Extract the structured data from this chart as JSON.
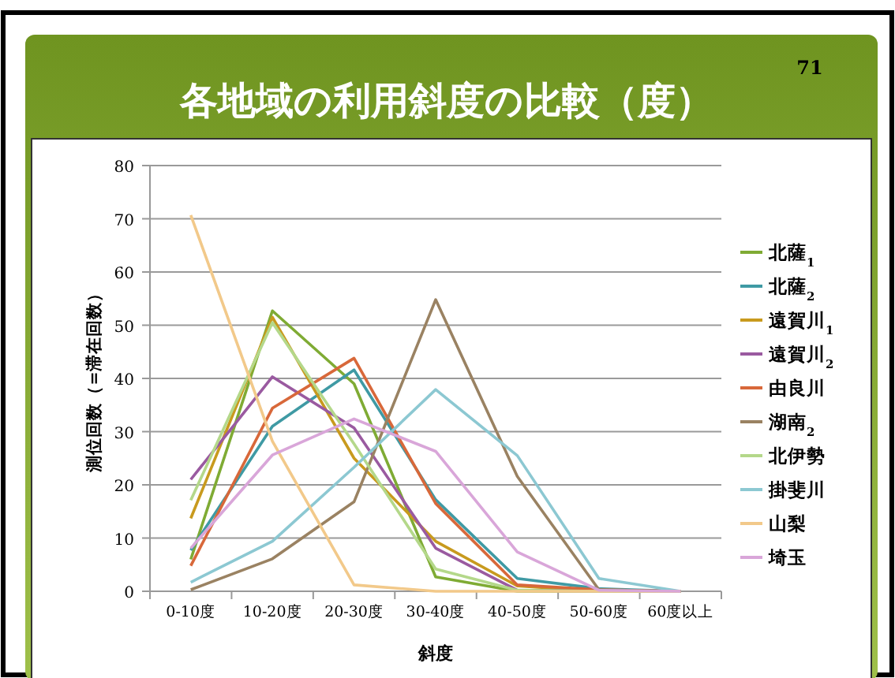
{
  "chart_data": {
    "type": "line",
    "title": "各地域の利用斜度の比較（度）",
    "annotations": [
      "71"
    ],
    "xlabel": "斜度",
    "ylabel": "測位回数（=滞在回数）",
    "categories": [
      "0-10度",
      "10-20度",
      "20-30度",
      "30-40度",
      "40-50度",
      "50-60度",
      "60度以上"
    ],
    "ylim": [
      0,
      80
    ],
    "yticks": [
      0,
      10,
      20,
      30,
      40,
      50,
      60,
      70,
      80
    ],
    "grid": "y",
    "legend": "right",
    "marker": "none",
    "series": [
      {
        "name": "北薩$_{1}$",
        "color": "#7fab34",
        "values": [
          6,
          52.7,
          39,
          2.7,
          0,
          0,
          0
        ]
      },
      {
        "name": "北薩$_{2}$",
        "color": "#3f9aa4",
        "values": [
          7.7,
          31,
          41.6,
          17.2,
          2.4,
          0.5,
          0
        ]
      },
      {
        "name": "遠賀川$_{1}$",
        "color": "#c89a1e",
        "values": [
          13.7,
          51.5,
          25,
          9.4,
          1,
          0,
          0
        ]
      },
      {
        "name": "遠賀川$_{2}$",
        "color": "#9a5aa0",
        "values": [
          21,
          40.3,
          30.7,
          8.1,
          0.2,
          0,
          0
        ]
      },
      {
        "name": "由良川",
        "color": "#d8683a",
        "values": [
          4.8,
          34.4,
          43.8,
          16.5,
          1.2,
          0.3,
          0
        ]
      },
      {
        "name": "湖南$_{2}$",
        "color": "#9a8262",
        "values": [
          0.3,
          6.1,
          16.8,
          54.8,
          21.6,
          0.3,
          0
        ]
      },
      {
        "name": "北伊勢",
        "color": "#b4d88a",
        "values": [
          17.1,
          50.5,
          27.7,
          4.2,
          0.2,
          0,
          0
        ]
      },
      {
        "name": "掛斐川",
        "color": "#8cc8d2",
        "values": [
          1.7,
          9.4,
          23.3,
          37.9,
          25.5,
          2.4,
          0
        ]
      },
      {
        "name": "山梨",
        "color": "#f2c98a",
        "values": [
          70.7,
          28.2,
          1.2,
          0,
          0,
          0,
          0
        ]
      },
      {
        "name": "埼玉",
        "color": "#d9a6d9",
        "values": [
          8.1,
          25.6,
          32.4,
          26.3,
          7.4,
          0.2,
          0
        ]
      }
    ]
  }
}
